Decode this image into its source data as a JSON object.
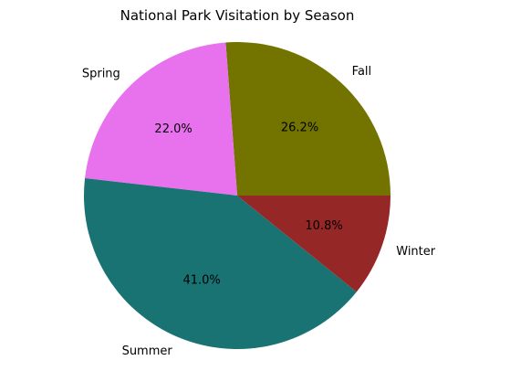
{
  "chart_data": {
    "type": "pie",
    "title": "National Park Visitation by Season",
    "slices": [
      {
        "label": "Fall",
        "value": 26.2,
        "pct_label": "26.2%",
        "color": "#737300"
      },
      {
        "label": "Spring",
        "value": 22.0,
        "pct_label": "22.0%",
        "color": "#e872ee"
      },
      {
        "label": "Summer",
        "value": 41.0,
        "pct_label": "41.0%",
        "color": "#1a7373"
      },
      {
        "label": "Winter",
        "value": 10.8,
        "pct_label": "10.8%",
        "color": "#962727"
      }
    ],
    "start_angle_deg": 0,
    "direction": "counterclockwise",
    "legend": "none"
  }
}
